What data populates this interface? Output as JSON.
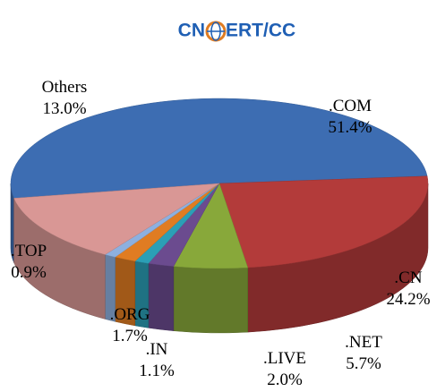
{
  "chart_data": {
    "type": "pie",
    "logo": [
      "CN",
      "ERT/CC"
    ],
    "categories": [
      ".COM",
      ".CN",
      ".NET",
      ".LIVE",
      ".IN",
      ".ORG",
      ".TOP",
      "Others"
    ],
    "values": [
      51.4,
      24.2,
      5.7,
      2.0,
      1.1,
      1.7,
      0.9,
      13.0
    ],
    "value_labels": [
      "51.4%",
      "24.2%",
      "5.7%",
      "2.0%",
      "1.1%",
      "1.7%",
      "0.9%",
      "13.0%"
    ],
    "colors": [
      "#3d6db2",
      "#b33b3a",
      "#88a83a",
      "#6b4b8f",
      "#2b9fb6",
      "#e07c22",
      "#8db0df",
      "#d99795"
    ]
  }
}
